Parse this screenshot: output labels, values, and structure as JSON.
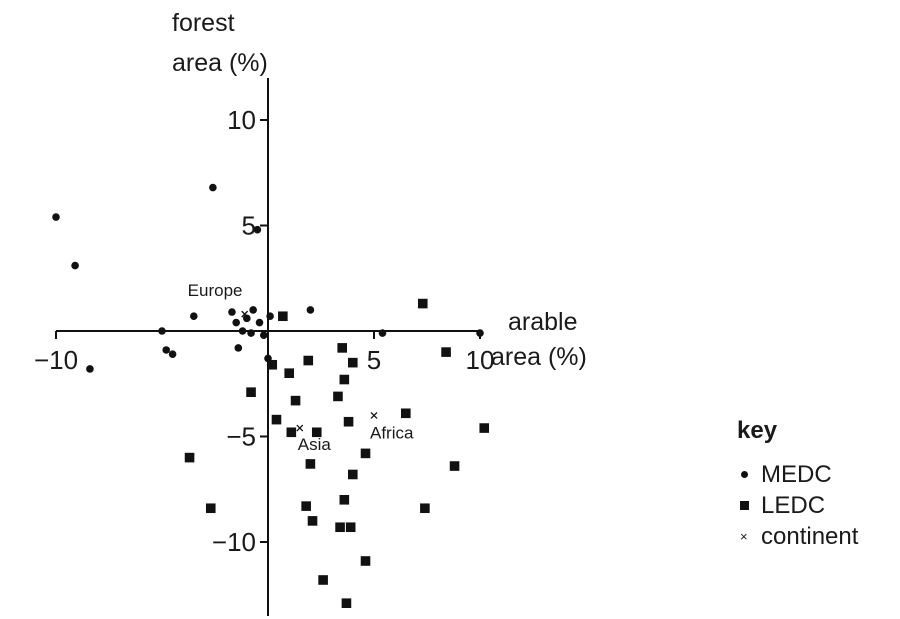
{
  "chart_data": {
    "type": "scatter",
    "title": "",
    "xlabel": [
      "arable",
      "area (%)"
    ],
    "ylabel": [
      "forest",
      "area (%)"
    ],
    "xlim": [
      -10,
      10
    ],
    "ylim": [
      -12.5,
      10.5
    ],
    "x_ticks": [
      {
        "value": -10,
        "label": "−10"
      },
      {
        "value": 5,
        "label": "5"
      },
      {
        "value": 10,
        "label": "10"
      }
    ],
    "y_ticks": [
      {
        "value": 10,
        "label": "10"
      },
      {
        "value": 5,
        "label": "5"
      },
      {
        "value": -5,
        "label": "−5"
      },
      {
        "value": -10,
        "label": "−10"
      }
    ],
    "grid": false,
    "legend_title": "key",
    "legend_position": "bottom-right",
    "series": [
      {
        "name": "MEDC",
        "marker": "circle",
        "points": [
          [
            -10,
            5.4
          ],
          [
            -9.1,
            3.1
          ],
          [
            -8.4,
            -1.8
          ],
          [
            -5.0,
            0.0
          ],
          [
            -4.8,
            -0.9
          ],
          [
            -4.5,
            -1.1
          ],
          [
            -3.5,
            0.7
          ],
          [
            -2.6,
            6.8
          ],
          [
            -1.7,
            0.9
          ],
          [
            -1.5,
            0.4
          ],
          [
            -1.4,
            -0.8
          ],
          [
            -1.2,
            0.0
          ],
          [
            -1.0,
            0.6
          ],
          [
            -0.8,
            -0.1
          ],
          [
            -0.7,
            1.0
          ],
          [
            -0.5,
            4.8
          ],
          [
            -0.4,
            0.4
          ],
          [
            -0.2,
            -0.2
          ],
          [
            0.0,
            -1.3
          ],
          [
            0.1,
            0.7
          ],
          [
            2.0,
            1.0
          ],
          [
            5.4,
            -0.1
          ],
          [
            10.0,
            -0.1
          ]
        ]
      },
      {
        "name": "LEDC",
        "marker": "square",
        "points": [
          [
            -3.7,
            -6.0
          ],
          [
            -2.7,
            -8.4
          ],
          [
            -0.8,
            -2.9
          ],
          [
            0.2,
            -1.6
          ],
          [
            0.4,
            -4.2
          ],
          [
            0.7,
            0.7
          ],
          [
            1.0,
            -2.0
          ],
          [
            1.1,
            -4.8
          ],
          [
            1.3,
            -3.3
          ],
          [
            1.8,
            -8.3
          ],
          [
            1.9,
            -1.4
          ],
          [
            2.0,
            -6.3
          ],
          [
            2.1,
            -9.0
          ],
          [
            2.3,
            -4.8
          ],
          [
            2.6,
            -11.8
          ],
          [
            3.3,
            -3.1
          ],
          [
            3.4,
            -9.3
          ],
          [
            3.5,
            -0.8
          ],
          [
            3.6,
            -8.0
          ],
          [
            3.6,
            -2.3
          ],
          [
            3.7,
            -12.9
          ],
          [
            3.8,
            -4.3
          ],
          [
            3.9,
            -9.3
          ],
          [
            4.0,
            -1.5
          ],
          [
            4.0,
            -6.8
          ],
          [
            4.6,
            -5.8
          ],
          [
            4.6,
            -10.9
          ],
          [
            6.5,
            -3.9
          ],
          [
            7.3,
            1.3
          ],
          [
            7.4,
            -8.4
          ],
          [
            8.4,
            -1.0
          ],
          [
            8.8,
            -6.4
          ],
          [
            10.2,
            -4.6
          ]
        ]
      },
      {
        "name": "continent",
        "marker": "x",
        "points": [
          {
            "x": -1.1,
            "y": 0.8,
            "label": "Europe"
          },
          {
            "x": 1.5,
            "y": -4.6,
            "label": "Asia"
          },
          {
            "x": 5.0,
            "y": -4.0,
            "label": "Africa"
          }
        ]
      }
    ]
  },
  "key": {
    "title": "key",
    "items": [
      {
        "symbol": "dot-icon",
        "label": "MEDC"
      },
      {
        "symbol": "square-icon",
        "label": "LEDC"
      },
      {
        "symbol": "x-icon",
        "label": "continent"
      }
    ]
  }
}
